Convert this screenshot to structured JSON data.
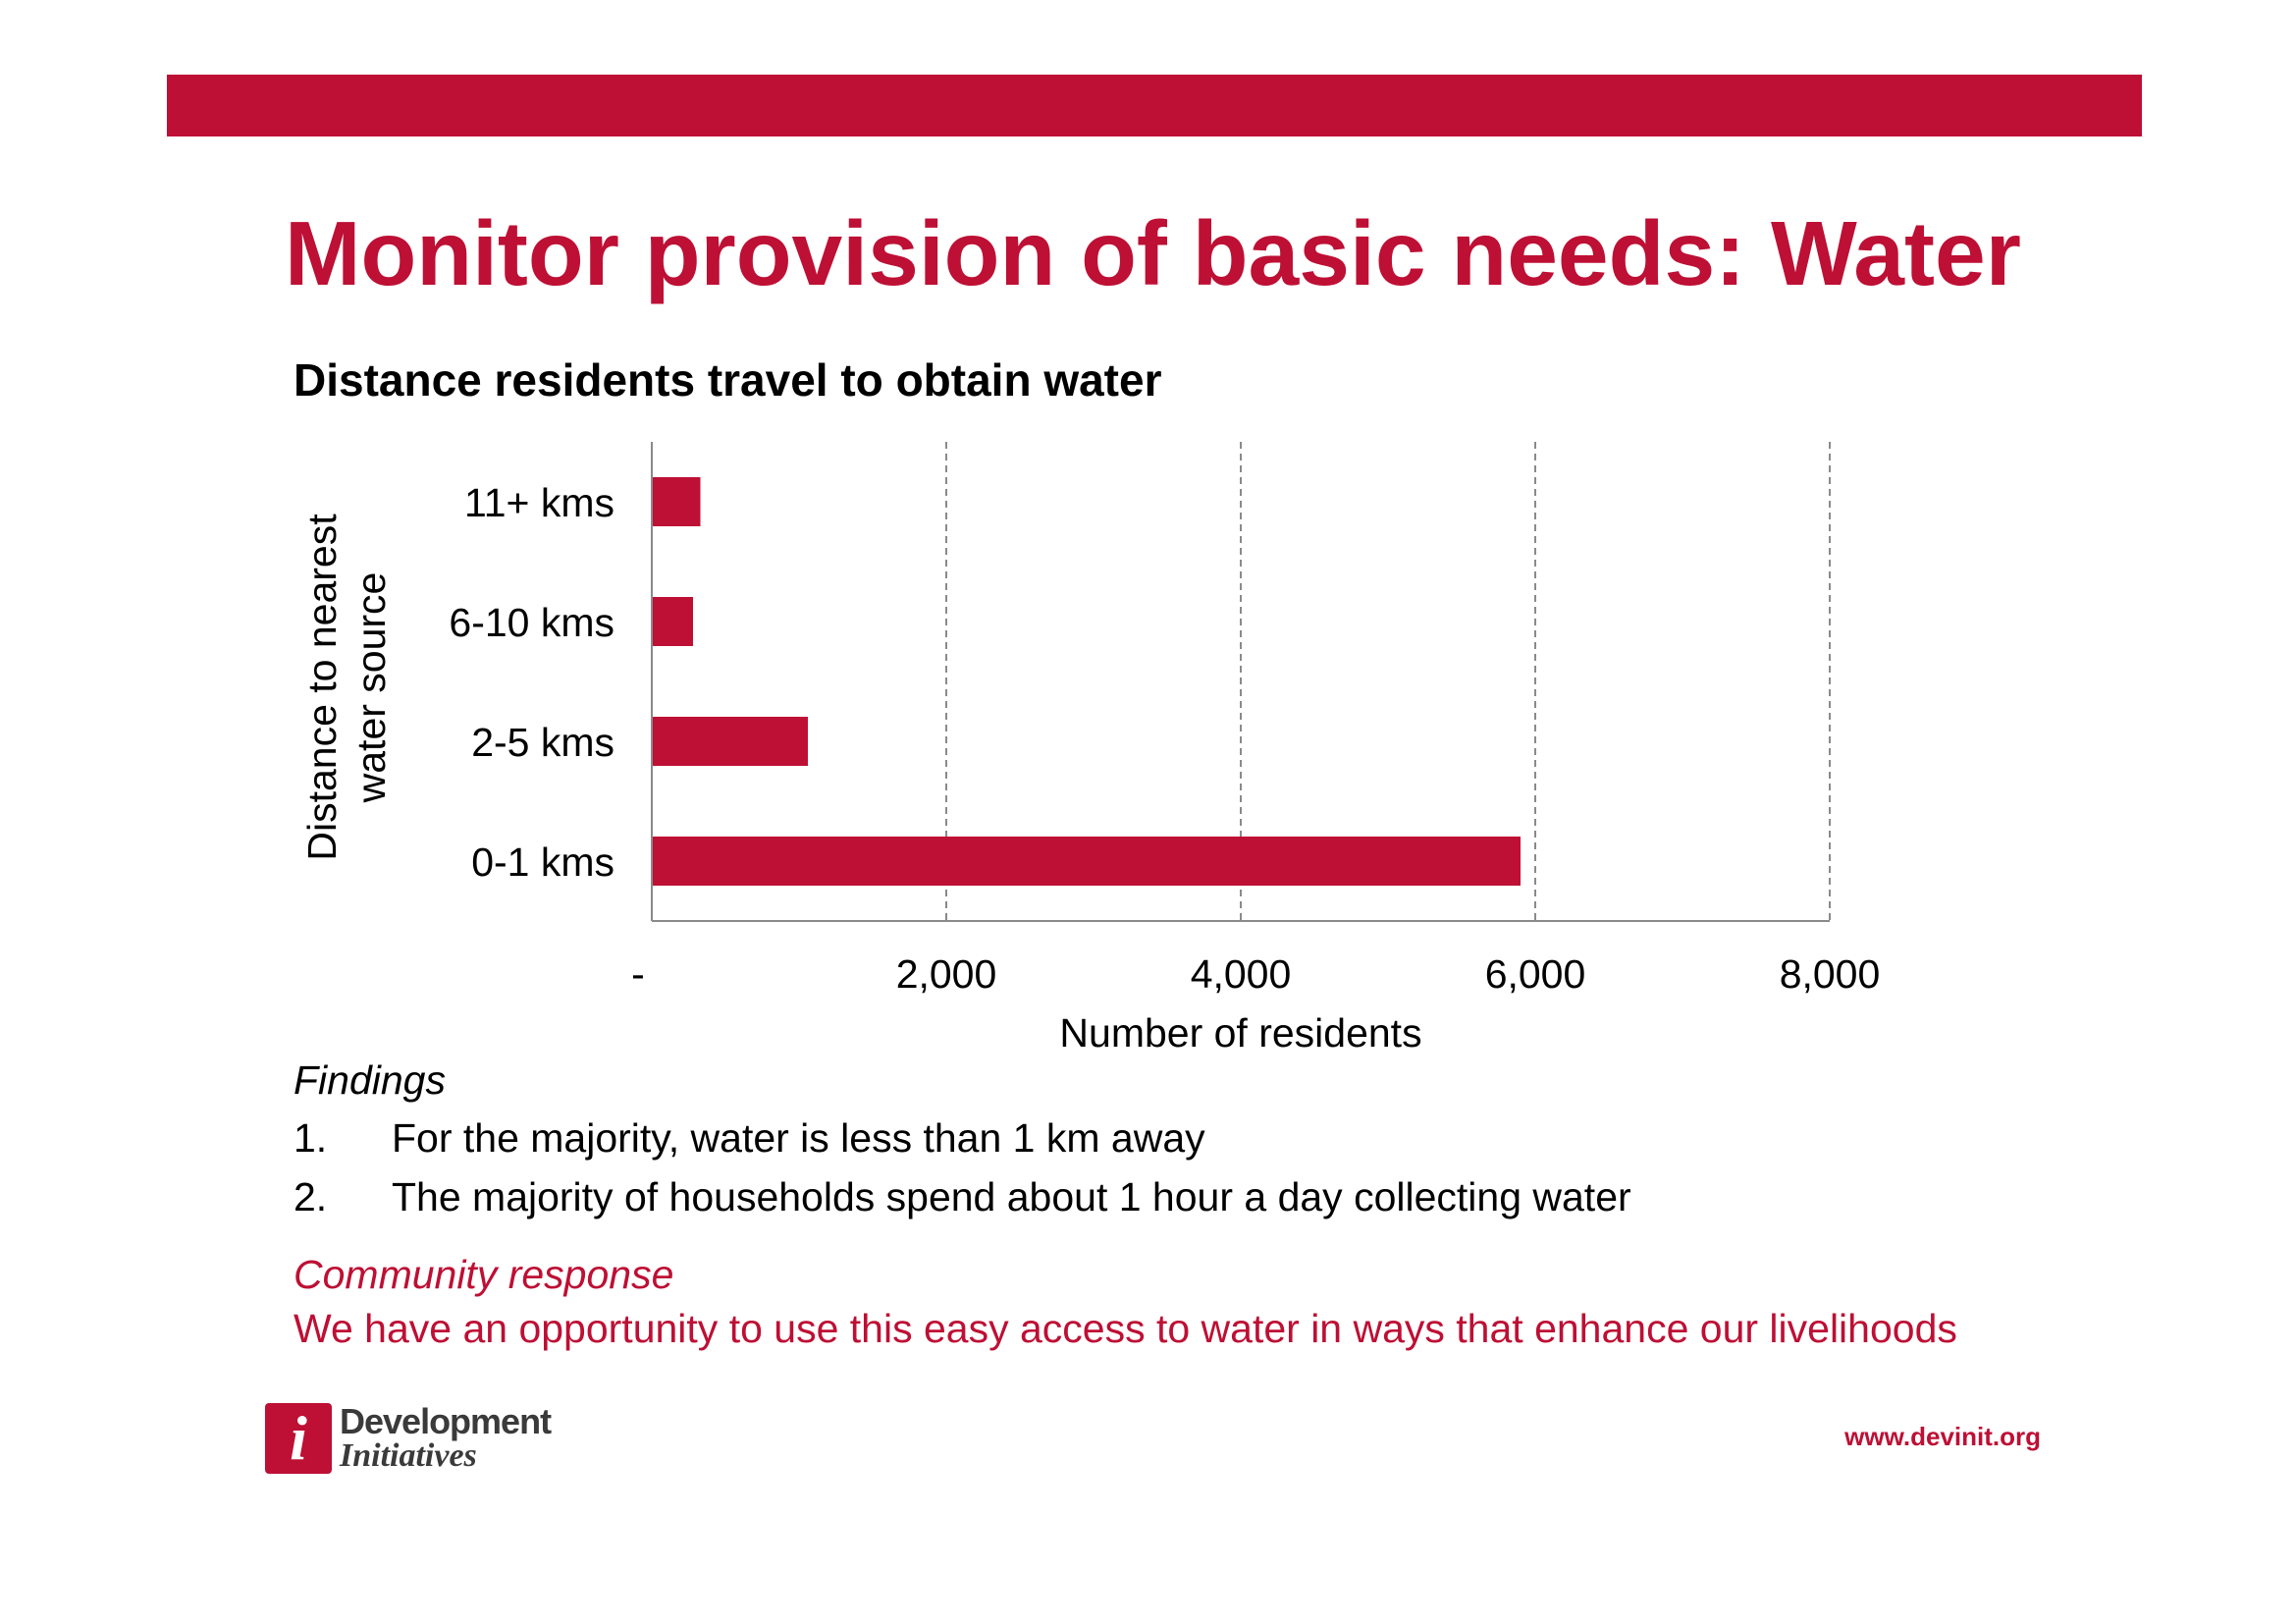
{
  "slide": {
    "title": "Monitor provision of basic needs: Water",
    "accent_color": "#BE0F34"
  },
  "chart_data": {
    "type": "bar",
    "orientation": "horizontal",
    "title": "Distance residents travel to obtain water",
    "xlabel": "Number of residents",
    "ylabel_lines": [
      "Distance to nearest",
      "water source"
    ],
    "categories": [
      "0-1 kms",
      "2-5 kms",
      "6-10 kms",
      "11+ kms"
    ],
    "values": [
      5900,
      1060,
      280,
      330
    ],
    "xlim": [
      0,
      8000
    ],
    "xticks": [
      0,
      2000,
      4000,
      6000,
      8000
    ],
    "xtick_labels": [
      "-",
      "2,000",
      "4,000",
      "6,000",
      "8,000"
    ],
    "grid": "vertical dashed",
    "bar_color": "#BE0F34"
  },
  "findings": {
    "heading": "Findings",
    "items": [
      {
        "num": "1.",
        "text": "For the majority, water is less than 1 km away"
      },
      {
        "num": "2.",
        "text": "The majority of households spend about 1 hour a day collecting water"
      }
    ]
  },
  "response": {
    "heading": "Community response",
    "text": "We have an opportunity to use this easy access to water in ways that enhance our livelihoods"
  },
  "footer": {
    "logo_mark": "i",
    "logo_line1": "Development",
    "logo_line2": "Initiatives",
    "url": "www.devinit.org"
  }
}
